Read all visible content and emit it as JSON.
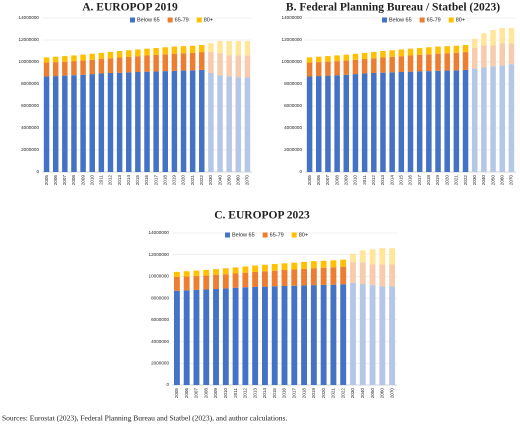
{
  "chart_data": [
    {
      "type": "bar",
      "stacked": true,
      "title": "A. EUROPOP 2019",
      "categories": [
        "2005",
        "2006",
        "2007",
        "2008",
        "2009",
        "2010",
        "2011",
        "2012",
        "2013",
        "2014",
        "2015",
        "2016",
        "2017",
        "2018",
        "2019",
        "2020",
        "2021",
        "2022",
        "2030",
        "2040",
        "2050",
        "2060",
        "2070"
      ],
      "series": [
        {
          "name": "Below 65",
          "color": "#4472c4",
          "projection_color": "#b4c7e7",
          "values": [
            8680000,
            8720000,
            8760000,
            8800000,
            8840000,
            8900000,
            8960000,
            9000000,
            9030000,
            9060000,
            9090000,
            9120000,
            9140000,
            9170000,
            9200000,
            9220000,
            9240000,
            9280000,
            9000000,
            8800000,
            8700000,
            8600000,
            8600000
          ]
        },
        {
          "name": "65-79",
          "color": "#ed7d31",
          "projection_color": "#f8cbad",
          "values": [
            1270000,
            1270000,
            1270000,
            1280000,
            1290000,
            1300000,
            1310000,
            1340000,
            1380000,
            1410000,
            1440000,
            1470000,
            1500000,
            1530000,
            1560000,
            1580000,
            1600000,
            1620000,
            1900000,
            2000000,
            1900000,
            2000000,
            2000000
          ]
        },
        {
          "name": "80+",
          "color": "#ffc000",
          "projection_color": "#ffe699",
          "values": [
            470000,
            490000,
            510000,
            520000,
            540000,
            550000,
            560000,
            580000,
            590000,
            600000,
            610000,
            620000,
            630000,
            640000,
            650000,
            640000,
            640000,
            650000,
            800000,
            1100000,
            1300000,
            1300000,
            1300000
          ]
        }
      ],
      "projection_from": "2030",
      "ylim": [
        0,
        14000000
      ],
      "yticks": [
        0,
        2000000,
        4000000,
        6000000,
        8000000,
        10000000,
        12000000,
        14000000
      ],
      "grid": true,
      "legend": "top"
    },
    {
      "type": "bar",
      "stacked": true,
      "title": "B.  Federal Planning Bureau / Statbel (2023)",
      "categories": [
        "2005",
        "2006",
        "2007",
        "2008",
        "2009",
        "2010",
        "2011",
        "2012",
        "2013",
        "2014",
        "2015",
        "2016",
        "2017",
        "2018",
        "2019",
        "2020",
        "2021",
        "2022",
        "2030",
        "2040",
        "2050",
        "2060",
        "2070"
      ],
      "series": [
        {
          "name": "Below 65",
          "color": "#4472c4",
          "projection_color": "#b4c7e7",
          "values": [
            8680000,
            8720000,
            8760000,
            8800000,
            8840000,
            8900000,
            8960000,
            9000000,
            9030000,
            9060000,
            9090000,
            9120000,
            9140000,
            9170000,
            9200000,
            9220000,
            9240000,
            9280000,
            9400000,
            9500000,
            9600000,
            9700000,
            9800000
          ]
        },
        {
          "name": "65-79",
          "color": "#ed7d31",
          "projection_color": "#f8cbad",
          "values": [
            1270000,
            1270000,
            1270000,
            1280000,
            1290000,
            1300000,
            1310000,
            1340000,
            1380000,
            1410000,
            1440000,
            1470000,
            1500000,
            1530000,
            1560000,
            1580000,
            1600000,
            1620000,
            1900000,
            2000000,
            1900000,
            2000000,
            1900000
          ]
        },
        {
          "name": "80+",
          "color": "#ffc000",
          "projection_color": "#ffe699",
          "values": [
            470000,
            490000,
            510000,
            520000,
            540000,
            550000,
            560000,
            580000,
            590000,
            600000,
            610000,
            620000,
            630000,
            640000,
            650000,
            640000,
            640000,
            650000,
            800000,
            1100000,
            1400000,
            1400000,
            1400000
          ]
        }
      ],
      "projection_from": "2030",
      "ylim": [
        0,
        14000000
      ],
      "yticks": [
        0,
        2000000,
        4000000,
        6000000,
        8000000,
        10000000,
        12000000,
        14000000
      ],
      "grid": true,
      "legend": "top"
    },
    {
      "type": "bar",
      "stacked": true,
      "title": "C.  EUROPOP 2023",
      "categories": [
        "2005",
        "2006",
        "2007",
        "2008",
        "2009",
        "2010",
        "2011",
        "2012",
        "2013",
        "2014",
        "2015",
        "2016",
        "2017",
        "2018",
        "2019",
        "2020",
        "2021",
        "2022",
        "2030",
        "2040",
        "2050",
        "2060",
        "2070"
      ],
      "series": [
        {
          "name": "Below 65",
          "color": "#4472c4",
          "projection_color": "#b4c7e7",
          "values": [
            8680000,
            8720000,
            8760000,
            8800000,
            8840000,
            8900000,
            8960000,
            9000000,
            9030000,
            9060000,
            9090000,
            9120000,
            9140000,
            9170000,
            9200000,
            9220000,
            9240000,
            9280000,
            9400000,
            9300000,
            9200000,
            9100000,
            9100000
          ]
        },
        {
          "name": "65-79",
          "color": "#ed7d31",
          "projection_color": "#f8cbad",
          "values": [
            1270000,
            1270000,
            1270000,
            1280000,
            1290000,
            1300000,
            1310000,
            1340000,
            1380000,
            1410000,
            1440000,
            1470000,
            1500000,
            1530000,
            1560000,
            1580000,
            1600000,
            1620000,
            1900000,
            2000000,
            1900000,
            2000000,
            2000000
          ]
        },
        {
          "name": "80+",
          "color": "#ffc000",
          "projection_color": "#ffe699",
          "values": [
            470000,
            490000,
            510000,
            520000,
            540000,
            550000,
            560000,
            580000,
            590000,
            600000,
            610000,
            620000,
            630000,
            640000,
            650000,
            640000,
            640000,
            650000,
            800000,
            1100000,
            1400000,
            1500000,
            1500000
          ]
        }
      ],
      "projection_from": "2030",
      "ylim": [
        0,
        14000000
      ],
      "yticks": [
        0,
        2000000,
        4000000,
        6000000,
        8000000,
        10000000,
        12000000,
        14000000
      ],
      "grid": true,
      "legend": "top"
    }
  ],
  "source": "Sources: Eurostat (2023), Federal Planning Bureau and Statbel (2023), and author calculations."
}
